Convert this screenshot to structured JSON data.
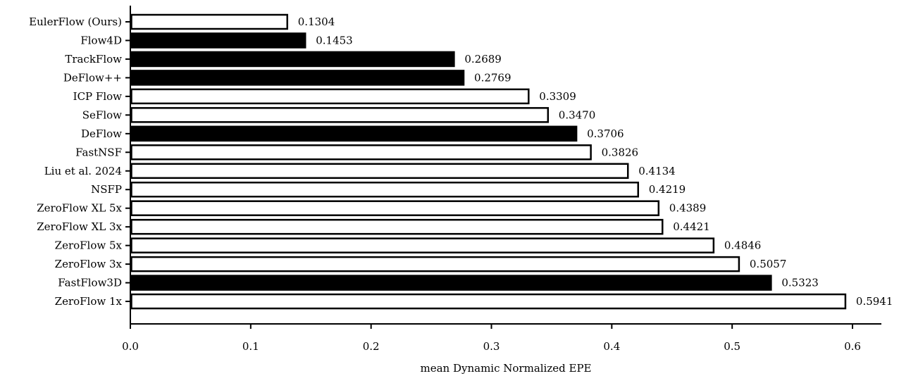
{
  "chart_data": {
    "type": "bar",
    "orientation": "horizontal",
    "title": "",
    "xlabel": "mean Dynamic Normalized EPE",
    "ylabel": "",
    "xlim": [
      0,
      0.625
    ],
    "xticks": [
      "0.0",
      "0.1",
      "0.2",
      "0.3",
      "0.4",
      "0.5",
      "0.6"
    ],
    "grid": false,
    "categories": [
      "EulerFlow (Ours)",
      "Flow4D",
      "TrackFlow",
      "DeFlow++",
      "ICP Flow",
      "SeFlow",
      "DeFlow",
      "FastNSF",
      "Liu et al. 2024",
      "NSFP",
      "ZeroFlow XL 5x",
      "ZeroFlow XL 3x",
      "ZeroFlow 5x",
      "ZeroFlow 3x",
      "FastFlow3D",
      "ZeroFlow 1x"
    ],
    "values": [
      0.1304,
      0.1453,
      0.2689,
      0.2769,
      0.3309,
      0.347,
      0.3706,
      0.3826,
      0.4134,
      0.4219,
      0.4389,
      0.4421,
      0.4846,
      0.5057,
      0.5323,
      0.5941
    ],
    "value_labels": [
      "0.1304",
      "0.1453",
      "0.2689",
      "0.2769",
      "0.3309",
      "0.3470",
      "0.3706",
      "0.3826",
      "0.4134",
      "0.4219",
      "0.4389",
      "0.4421",
      "0.4846",
      "0.5057",
      "0.5323",
      "0.5941"
    ],
    "filled": [
      false,
      true,
      true,
      true,
      false,
      false,
      true,
      false,
      false,
      false,
      false,
      false,
      false,
      false,
      true,
      false
    ],
    "colors": {
      "filled": "#000000",
      "hollow": "#ffffff",
      "edge": "#000000"
    }
  }
}
